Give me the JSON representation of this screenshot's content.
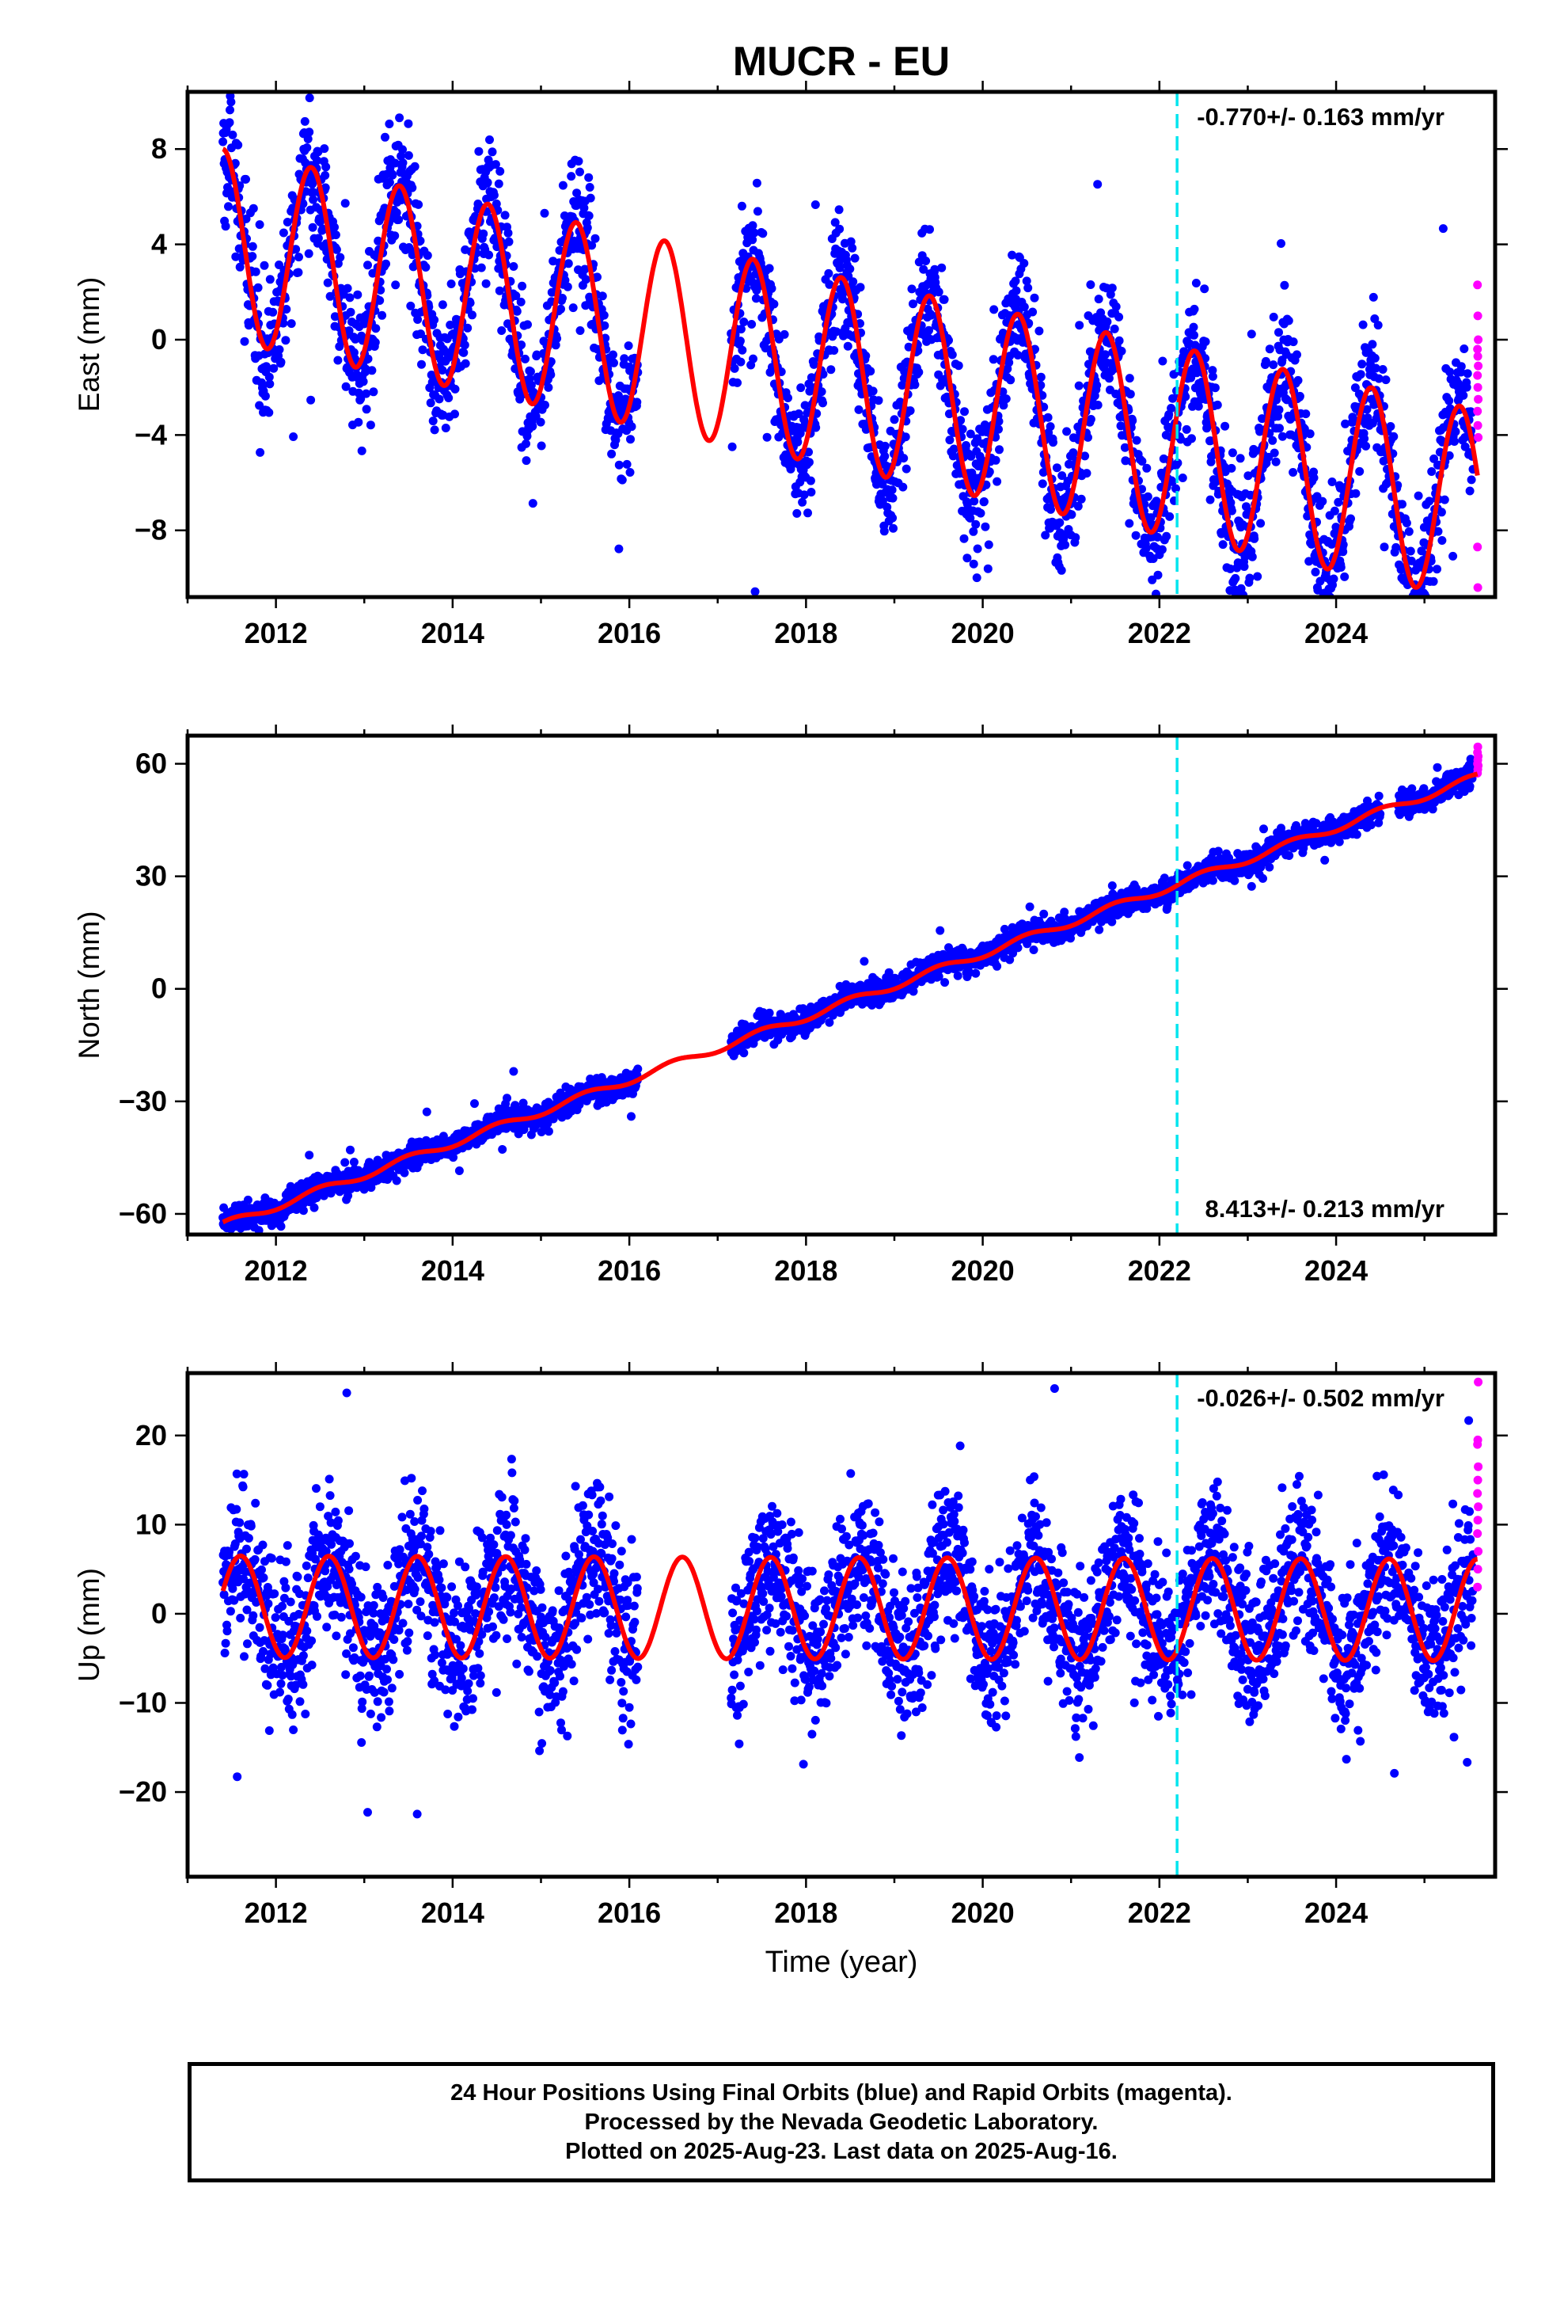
{
  "title": "MUCR - EU",
  "footer": {
    "line1": "24 Hour Positions Using Final Orbits (blue) and Rapid Orbits (magenta).",
    "line2": "Processed by the Nevada Geodetic Laboratory.",
    "line3": "Plotted on 2025-Aug-23. Last data on 2025-Aug-16."
  },
  "colors": {
    "final_points": "#0000ff",
    "rapid_points": "#ff00ff",
    "model_fit": "#ff0000",
    "event_line": "#00e5ee"
  },
  "chart_data": [
    {
      "type": "scatter",
      "ylabel": "East (mm)",
      "xlim": [
        2011.0,
        2025.8
      ],
      "ylim": [
        -10.8,
        10.4
      ],
      "xticks": [
        2012,
        2014,
        2016,
        2018,
        2020,
        2022,
        2024
      ],
      "yticks": [
        -8,
        -4,
        0,
        4,
        8
      ],
      "rate_label": "-0.770+/- 0.163 mm/yr",
      "rate_position": "top-right",
      "event_line_x": 2022.2,
      "model": {
        "offset": 4.0,
        "trend": -0.77,
        "start": 2011.4,
        "annual_amplitude": 4.0,
        "annual_peak": 2011.4
      },
      "final_points_series": {
        "start": 2011.4,
        "end": 2025.55,
        "gaps": [
          [
            2016.1,
            2017.15
          ]
        ],
        "noise_sd": 1.4
      },
      "rapid_points": [
        2.3,
        1.0,
        0.0,
        -0.4,
        -0.7,
        -1.1,
        -1.5,
        -2.0,
        -2.5,
        -3.0,
        -3.6,
        -4.1,
        -8.7,
        -10.4
      ]
    },
    {
      "type": "scatter",
      "ylabel": "North (mm)",
      "xlim": [
        2011.0,
        2025.8
      ],
      "ylim": [
        -65.5,
        67.5
      ],
      "xticks": [
        2012,
        2014,
        2016,
        2018,
        2020,
        2022,
        2024
      ],
      "yticks": [
        -60,
        -30,
        0,
        30,
        60
      ],
      "rate_label": "8.413+/- 0.213 mm/yr",
      "rate_position": "bottom-right",
      "event_line_x": 2022.2,
      "model": {
        "offset": -63.0,
        "trend": 8.413,
        "start": 2011.4,
        "annual_amplitude": 1.0,
        "annual_peak": 2011.5
      },
      "final_points_series": {
        "start": 2011.4,
        "end": 2025.55,
        "gaps": [
          [
            2016.1,
            2017.15
          ],
          [
            2024.5,
            2024.7
          ]
        ],
        "noise_sd": 1.6
      },
      "rapid_points": [
        57.5,
        58.5,
        59.5,
        60.0,
        61.0,
        62.0,
        63.0,
        64.5
      ]
    },
    {
      "type": "scatter",
      "ylabel": "Up (mm)",
      "xlim": [
        2011.0,
        2025.8
      ],
      "ylim": [
        -29.5,
        27.0
      ],
      "xticks": [
        2012,
        2014,
        2016,
        2018,
        2020,
        2022,
        2024
      ],
      "yticks": [
        -20,
        -10,
        0,
        10,
        20
      ],
      "xlabel": "Time (year)",
      "rate_label": "-0.026+/- 0.502 mm/yr",
      "rate_position": "top-right",
      "event_line_x": 2022.2,
      "model": {
        "offset": 0.8,
        "trend": -0.026,
        "start": 2011.4,
        "annual_amplitude": 5.7,
        "annual_peak": 2011.6
      },
      "final_points_series": {
        "start": 2011.4,
        "end": 2025.55,
        "gaps": [
          [
            2016.1,
            2017.15
          ]
        ],
        "noise_sd": 4.2
      },
      "rapid_points": [
        3.0,
        5.0,
        7.0,
        9.0,
        10.5,
        12.0,
        13.5,
        15.0,
        16.5,
        19.0,
        19.5,
        26.0
      ]
    }
  ]
}
